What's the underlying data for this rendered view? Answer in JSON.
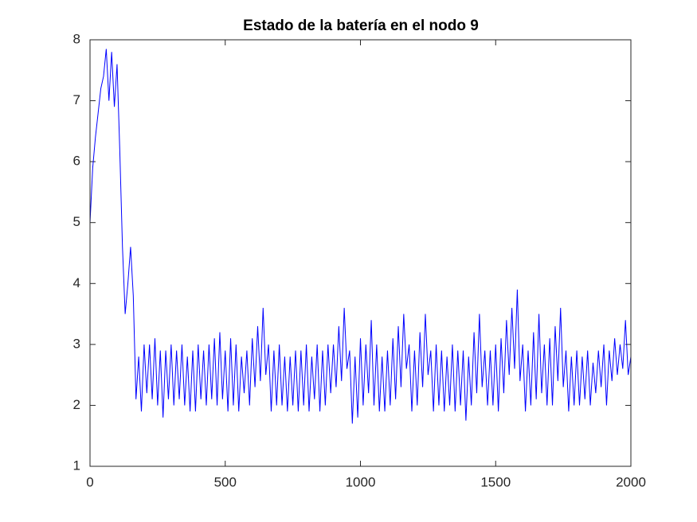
{
  "chart_data": {
    "type": "line",
    "title": "Estado de la batería en el nodo 9",
    "xlim": [
      0,
      2000
    ],
    "xticks": [
      0,
      500,
      1000,
      1500,
      2000
    ],
    "ylim": [
      1,
      8
    ],
    "yticks": [
      1,
      2,
      3,
      4,
      5,
      6,
      7,
      8
    ],
    "x": [
      0,
      10,
      20,
      30,
      40,
      50,
      60,
      70,
      80,
      90,
      100,
      110,
      120,
      130,
      140,
      150,
      160,
      170,
      180,
      190,
      200,
      210,
      220,
      230,
      240,
      250,
      260,
      270,
      280,
      290,
      300,
      310,
      320,
      330,
      340,
      350,
      360,
      370,
      380,
      390,
      400,
      410,
      420,
      430,
      440,
      450,
      460,
      470,
      480,
      490,
      500,
      510,
      520,
      530,
      540,
      550,
      560,
      570,
      580,
      590,
      600,
      610,
      620,
      630,
      640,
      650,
      660,
      670,
      680,
      690,
      700,
      710,
      720,
      730,
      740,
      750,
      760,
      770,
      780,
      790,
      800,
      810,
      820,
      830,
      840,
      850,
      860,
      870,
      880,
      890,
      900,
      910,
      920,
      930,
      940,
      950,
      960,
      970,
      980,
      990,
      1000,
      1010,
      1020,
      1030,
      1040,
      1050,
      1060,
      1070,
      1080,
      1090,
      1100,
      1110,
      1120,
      1130,
      1140,
      1150,
      1160,
      1170,
      1180,
      1190,
      1200,
      1210,
      1220,
      1230,
      1240,
      1250,
      1260,
      1270,
      1280,
      1290,
      1300,
      1310,
      1320,
      1330,
      1340,
      1350,
      1360,
      1370,
      1380,
      1390,
      1400,
      1410,
      1420,
      1430,
      1440,
      1450,
      1460,
      1470,
      1480,
      1490,
      1500,
      1510,
      1520,
      1530,
      1540,
      1550,
      1560,
      1570,
      1580,
      1590,
      1600,
      1610,
      1620,
      1630,
      1640,
      1650,
      1660,
      1670,
      1680,
      1690,
      1700,
      1710,
      1720,
      1730,
      1740,
      1750,
      1760,
      1770,
      1780,
      1790,
      1800,
      1810,
      1820,
      1830,
      1840,
      1850,
      1860,
      1870,
      1880,
      1890,
      1900,
      1910,
      1920,
      1930,
      1940,
      1950,
      1960,
      1970,
      1980,
      1990,
      2000
    ],
    "series": [
      {
        "color": "#0000ff",
        "values": [
          5.0,
          5.9,
          6.4,
          6.8,
          7.2,
          7.4,
          7.85,
          7.0,
          7.8,
          6.9,
          7.6,
          6.2,
          4.6,
          3.5,
          4.0,
          4.6,
          3.8,
          2.1,
          2.8,
          1.9,
          3.0,
          2.2,
          3.0,
          2.1,
          3.1,
          2.0,
          2.9,
          1.8,
          2.9,
          2.1,
          3.0,
          2.0,
          2.9,
          2.1,
          3.0,
          2.0,
          2.8,
          1.9,
          2.9,
          1.9,
          3.0,
          2.1,
          2.9,
          2.0,
          3.0,
          2.1,
          3.1,
          2.0,
          3.2,
          2.1,
          2.9,
          1.9,
          3.1,
          2.0,
          3.0,
          1.9,
          2.8,
          2.2,
          2.9,
          2.0,
          3.1,
          2.3,
          3.3,
          2.4,
          3.6,
          2.5,
          3.0,
          1.9,
          2.9,
          2.0,
          3.0,
          2.0,
          2.8,
          1.9,
          2.8,
          2.0,
          2.9,
          1.9,
          2.9,
          2.0,
          3.0,
          1.9,
          2.8,
          2.1,
          3.0,
          1.9,
          2.9,
          2.0,
          3.0,
          2.2,
          3.0,
          2.3,
          3.3,
          2.4,
          3.6,
          2.6,
          2.9,
          1.7,
          2.8,
          1.8,
          3.1,
          2.0,
          3.0,
          2.2,
          3.4,
          2.0,
          3.0,
          1.9,
          2.8,
          1.9,
          2.9,
          2.0,
          3.1,
          2.1,
          3.3,
          2.3,
          3.5,
          2.6,
          3.0,
          1.9,
          2.9,
          2.0,
          3.2,
          2.3,
          3.5,
          2.5,
          2.9,
          1.9,
          3.0,
          2.0,
          2.9,
          1.9,
          2.8,
          2.0,
          3.0,
          1.9,
          2.9,
          2.0,
          2.9,
          1.75,
          2.8,
          2.0,
          3.2,
          2.2,
          3.5,
          2.3,
          2.9,
          2.0,
          2.9,
          2.0,
          3.0,
          1.9,
          3.1,
          2.2,
          3.4,
          2.5,
          3.6,
          2.6,
          3.9,
          2.4,
          3.0,
          1.9,
          2.9,
          2.0,
          3.2,
          2.1,
          3.5,
          2.2,
          3.0,
          2.0,
          3.1,
          2.0,
          3.3,
          2.4,
          3.6,
          2.3,
          2.9,
          1.9,
          2.8,
          2.0,
          2.9,
          2.0,
          2.8,
          2.1,
          2.9,
          2.0,
          2.7,
          2.2,
          2.9,
          2.3,
          3.0,
          2.0,
          2.9,
          2.4,
          3.1,
          2.5,
          3.0,
          2.6,
          3.4,
          2.5,
          2.8
        ]
      }
    ]
  }
}
